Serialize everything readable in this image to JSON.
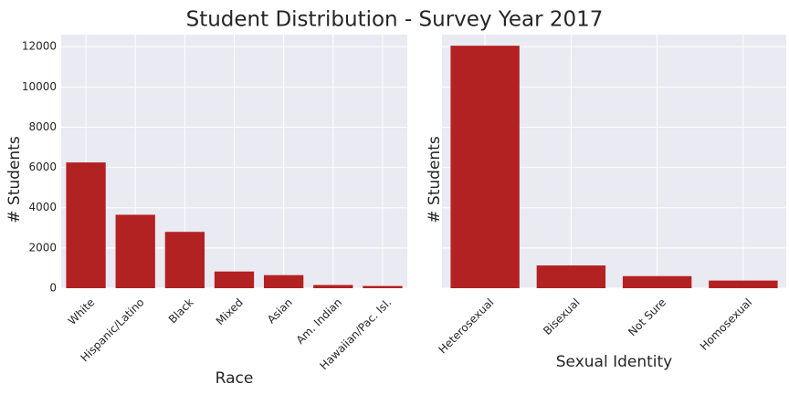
{
  "figure_title": "Student Distribution - Survey Year 2017",
  "chart_data": [
    {
      "type": "bar",
      "title": "",
      "xlabel": "Race",
      "ylabel": "# Students",
      "categories": [
        "White",
        "Hispanic/Latino",
        "Black",
        "Mixed",
        "Asian",
        "Am. Indian",
        "Hawaiian/Pac. Isl."
      ],
      "values": [
        6250,
        3650,
        2800,
        830,
        650,
        160,
        110
      ],
      "ylim": [
        0,
        12600
      ],
      "yticks": [
        0,
        2000,
        4000,
        6000,
        8000,
        10000,
        12000
      ],
      "ytick_labels": [
        "0",
        "2000",
        "4000",
        "6000",
        "8000",
        "10000",
        "12000"
      ],
      "bar_color": "#B22222",
      "grid": true
    },
    {
      "type": "bar",
      "title": "",
      "xlabel": "Sexual Identity",
      "ylabel": "# Students",
      "categories": [
        "Heterosexual",
        "Bisexual",
        "Not Sure",
        "Homosexual"
      ],
      "values": [
        12050,
        1130,
        600,
        380
      ],
      "ylim": [
        0,
        12600
      ],
      "yticks": [
        0,
        2000,
        4000,
        6000,
        8000,
        10000,
        12000
      ],
      "ytick_labels": [],
      "bar_color": "#B22222",
      "grid": true
    }
  ],
  "style": {
    "background": "#EAEAF2",
    "grid_color": "#FFFFFF",
    "text_color": "#262626"
  }
}
